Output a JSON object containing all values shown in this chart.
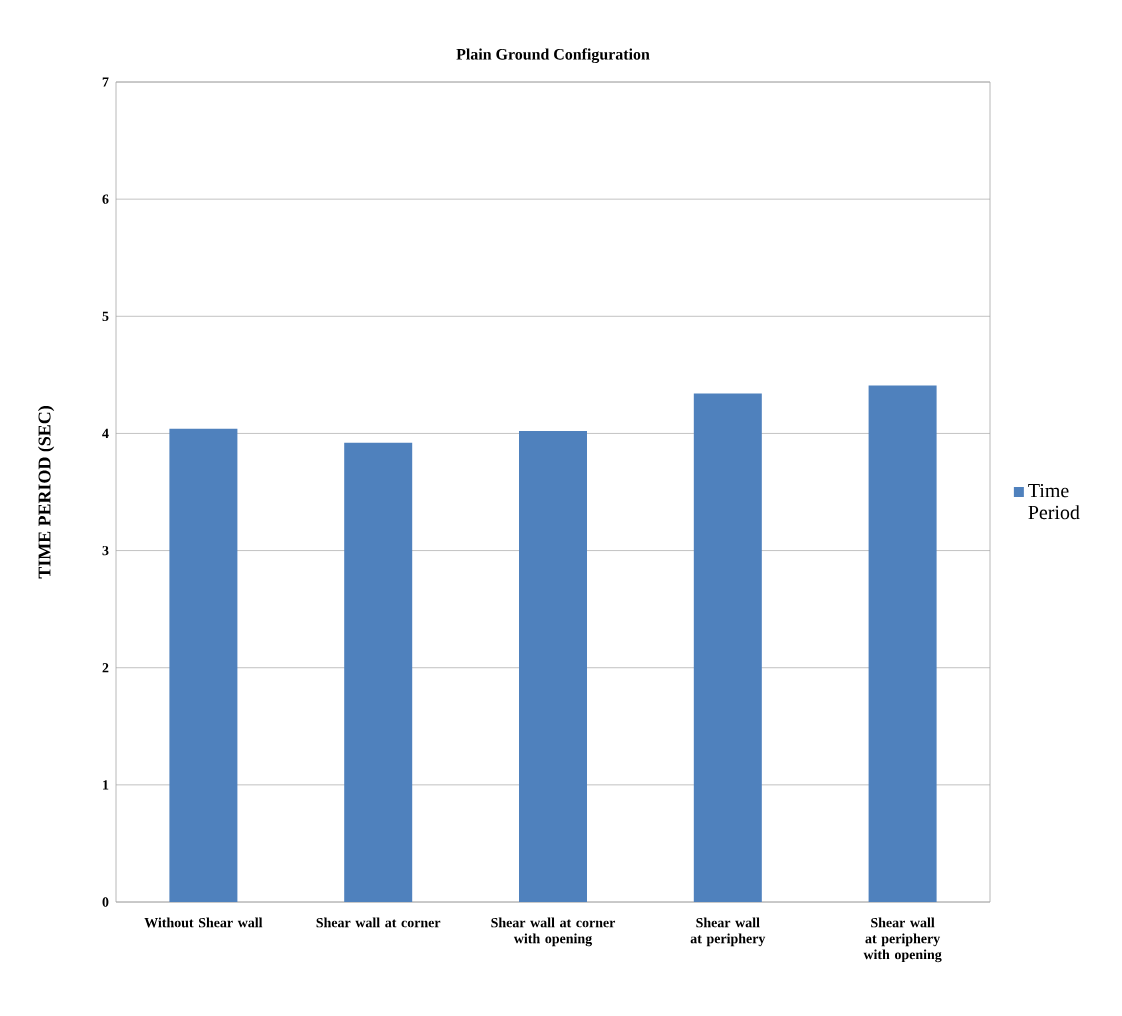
{
  "chart_data": {
    "type": "bar",
    "title": "Plain Ground Configuration",
    "ylabel": "TIME PERIOD (SEC)",
    "categories": [
      "Without Shear wall",
      "Shear wall at corner",
      "Shear wall at corner with opening",
      "Shear wall at periphery",
      "Shear wall at periphery with opening"
    ],
    "series": [
      {
        "name": "Time Period",
        "color": "#4f81bd",
        "values": [
          4.04,
          3.92,
          4.02,
          4.34,
          4.41
        ]
      }
    ],
    "ylim": [
      0,
      7
    ],
    "yticks": [
      0,
      1,
      2,
      3,
      4,
      5,
      6,
      7
    ],
    "grid": "y",
    "legend": "right"
  }
}
